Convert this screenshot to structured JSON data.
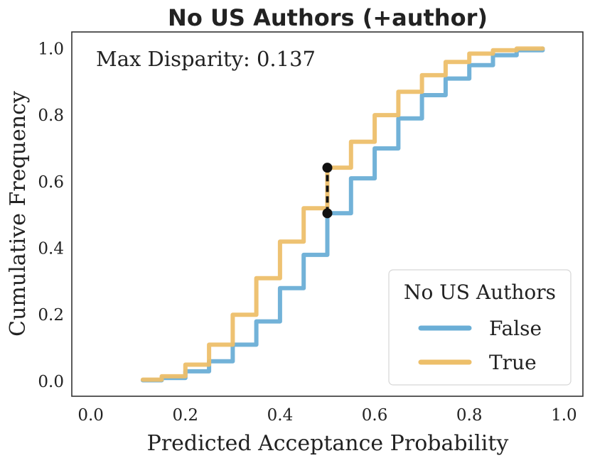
{
  "chart_data": {
    "type": "line",
    "title": "No US Authors (+author)",
    "xlabel": "Predicted Acceptance Probability",
    "ylabel": "Cumulative Frequency",
    "xlim": [
      -0.04,
      1.04
    ],
    "ylim": [
      -0.045,
      1.05
    ],
    "xticks": [
      "0.0",
      "0.2",
      "0.4",
      "0.6",
      "0.8",
      "1.0"
    ],
    "yticks": [
      "0.0",
      "0.2",
      "0.4",
      "0.6",
      "0.8",
      "1.0"
    ],
    "grid": false,
    "annotation": "Max Disparity: 0.137",
    "disparity": {
      "x": 0.5,
      "y_low": 0.505,
      "y_high": 0.642
    },
    "legend": {
      "title": "No US Authors",
      "position": "bottom-right"
    },
    "series": [
      {
        "name": "False",
        "color": "#6aaed6",
        "x": [
          0.11,
          0.15,
          0.2,
          0.25,
          0.3,
          0.35,
          0.4,
          0.45,
          0.5,
          0.55,
          0.6,
          0.65,
          0.7,
          0.75,
          0.8,
          0.85,
          0.9,
          0.955
        ],
        "y": [
          0.003,
          0.01,
          0.03,
          0.06,
          0.11,
          0.18,
          0.28,
          0.38,
          0.505,
          0.61,
          0.7,
          0.79,
          0.86,
          0.91,
          0.95,
          0.98,
          0.995,
          1.0
        ]
      },
      {
        "name": "True",
        "color": "#edbf6a",
        "x": [
          0.11,
          0.15,
          0.2,
          0.25,
          0.3,
          0.35,
          0.4,
          0.45,
          0.5,
          0.55,
          0.6,
          0.65,
          0.7,
          0.75,
          0.8,
          0.85,
          0.9,
          0.955
        ],
        "y": [
          0.005,
          0.015,
          0.05,
          0.11,
          0.2,
          0.31,
          0.42,
          0.52,
          0.642,
          0.72,
          0.8,
          0.87,
          0.92,
          0.96,
          0.985,
          0.995,
          1.0,
          1.0
        ]
      }
    ]
  }
}
